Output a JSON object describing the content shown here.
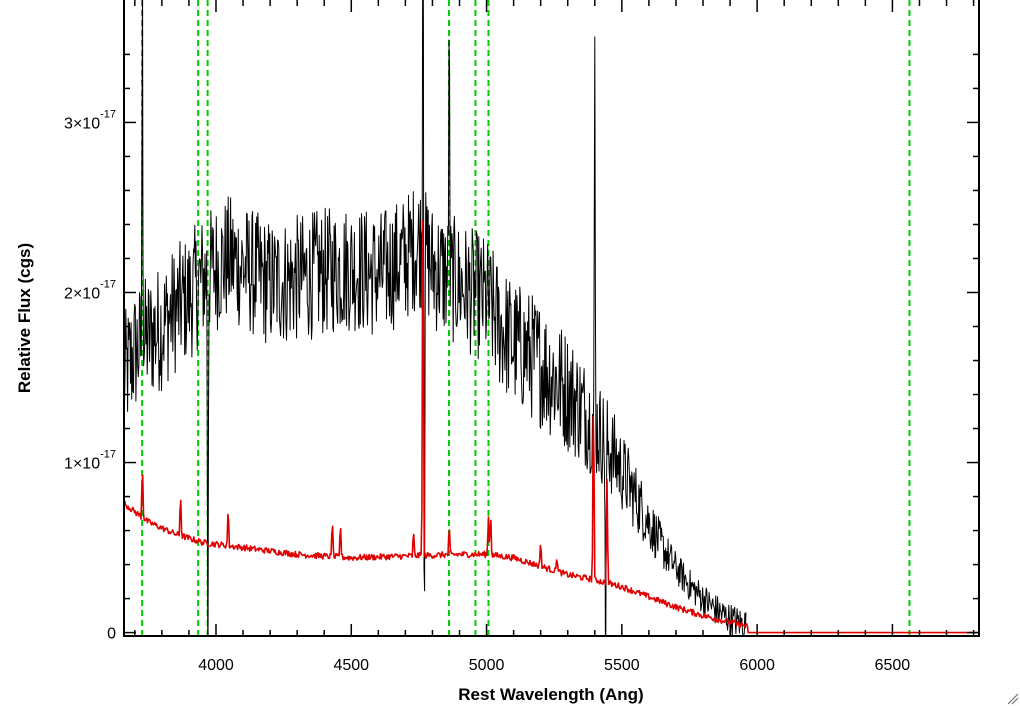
{
  "chart_data": {
    "type": "line",
    "title": "",
    "xlabel": "Rest Wavelength (Ang)",
    "ylabel": "Relative Flux (cgs)",
    "xlim": [
      3660,
      6820
    ],
    "ylim": [
      -2e-19,
      3.72e-17
    ],
    "x_ticks": [
      {
        "value": 4000,
        "label": "4000"
      },
      {
        "value": 4500,
        "label": "4500"
      },
      {
        "value": 5000,
        "label": "5000"
      },
      {
        "value": 5500,
        "label": "5500"
      },
      {
        "value": 6000,
        "label": "6000"
      },
      {
        "value": 6500,
        "label": "6500"
      }
    ],
    "y_ticks": [
      {
        "value": 0,
        "mantissa": "0",
        "exponent": ""
      },
      {
        "value": 1e-17,
        "mantissa": "1×10",
        "exponent": "-17"
      },
      {
        "value": 2e-17,
        "mantissa": "2×10",
        "exponent": "-17"
      },
      {
        "value": 3e-17,
        "mantissa": "3×10",
        "exponent": "-17"
      }
    ],
    "grid": false,
    "series": [
      {
        "color": "#000000",
        "style": "noisy spectrum",
        "x": [
          3660,
          3700,
          3740,
          3800,
          3850,
          3900,
          3950,
          4000,
          4050,
          4100,
          4200,
          4300,
          4400,
          4500,
          4600,
          4700,
          4750,
          4800,
          4850,
          4900,
          4950,
          5000,
          5050,
          5100,
          5150,
          5200,
          5250,
          5300,
          5350,
          5400,
          5450,
          5500,
          5550,
          5600,
          5650,
          5700,
          5750,
          5800,
          5850,
          5900,
          5950,
          5960
        ],
        "values": [
          1.5e-17,
          1.65e-17,
          1.72e-17,
          1.8e-17,
          1.9e-17,
          1.97e-17,
          2.08e-17,
          2.15e-17,
          2.2e-17,
          2.15e-17,
          2.05e-17,
          2.08e-17,
          2.12e-17,
          2.15e-17,
          2.1e-17,
          2.2e-17,
          2.3e-17,
          2.15e-17,
          2.1e-17,
          2.05e-17,
          2e-17,
          1.95e-17,
          1.8e-17,
          1.7e-17,
          1.65e-17,
          1.58e-17,
          1.5e-17,
          1.42e-17,
          1.32e-17,
          1.22e-17,
          1.1e-17,
          9.5e-18,
          8e-18,
          6.5e-18,
          5e-18,
          3.8e-18,
          2.8e-18,
          2e-18,
          1.3e-18,
          8e-19,
          5e-19,
          5e-19
        ],
        "noise_amplitude": 3.8e-18,
        "spikes": [
          {
            "x": 3728,
            "value": 4e-17
          },
          {
            "x": 3970,
            "value": -5e-18
          },
          {
            "x": 4765,
            "value": 5e-17
          },
          {
            "x": 4770,
            "value": -5e-18
          },
          {
            "x": 4862,
            "value": 4e-17
          },
          {
            "x": 5400,
            "value": 3.65e-17
          },
          {
            "x": 5440,
            "value": -5e-18
          }
        ]
      },
      {
        "color": "#e00000",
        "style": "smooth spectrum",
        "x": [
          3660,
          3750,
          3850,
          3950,
          4100,
          4300,
          4500,
          4700,
          4900,
          5000,
          5100,
          5200,
          5300,
          5400,
          5500,
          5600,
          5700,
          5800,
          5900,
          5960,
          5970,
          6000,
          6820
        ],
        "values": [
          7.6e-18,
          6.5e-18,
          5.8e-18,
          5.3e-18,
          5e-18,
          4.6e-18,
          4.4e-18,
          4.5e-18,
          4.6e-18,
          4.6e-18,
          4.4e-18,
          3.9e-18,
          3.4e-18,
          3.1e-18,
          2.7e-18,
          2.1e-18,
          1.5e-18,
          1e-18,
          6e-19,
          4e-19,
          0.0,
          0.0,
          0.0
        ],
        "noise_amplitude": 1.8e-19,
        "spikes": [
          {
            "x": 3728,
            "value": 1e-17
          },
          {
            "x": 3869,
            "value": 8.4e-18
          },
          {
            "x": 4045,
            "value": 7.5e-18
          },
          {
            "x": 4430,
            "value": 6.8e-18
          },
          {
            "x": 4460,
            "value": 6.6e-18
          },
          {
            "x": 4730,
            "value": 6.1e-18
          },
          {
            "x": 4765,
            "value": 2.98e-17
          },
          {
            "x": 4862,
            "value": 6.4e-18
          },
          {
            "x": 5007,
            "value": 6.8e-18
          },
          {
            "x": 5015,
            "value": 7.2e-18
          },
          {
            "x": 5200,
            "value": 5.5e-18
          },
          {
            "x": 5260,
            "value": 4.5e-18
          },
          {
            "x": 5395,
            "value": 1.55e-17
          },
          {
            "x": 5445,
            "value": 9e-18
          }
        ]
      }
    ],
    "reference_lines": {
      "color": "#00cc00",
      "style": "dashed",
      "x": [
        3727,
        3934,
        3969,
        4861,
        4959,
        5007,
        6563
      ]
    }
  }
}
